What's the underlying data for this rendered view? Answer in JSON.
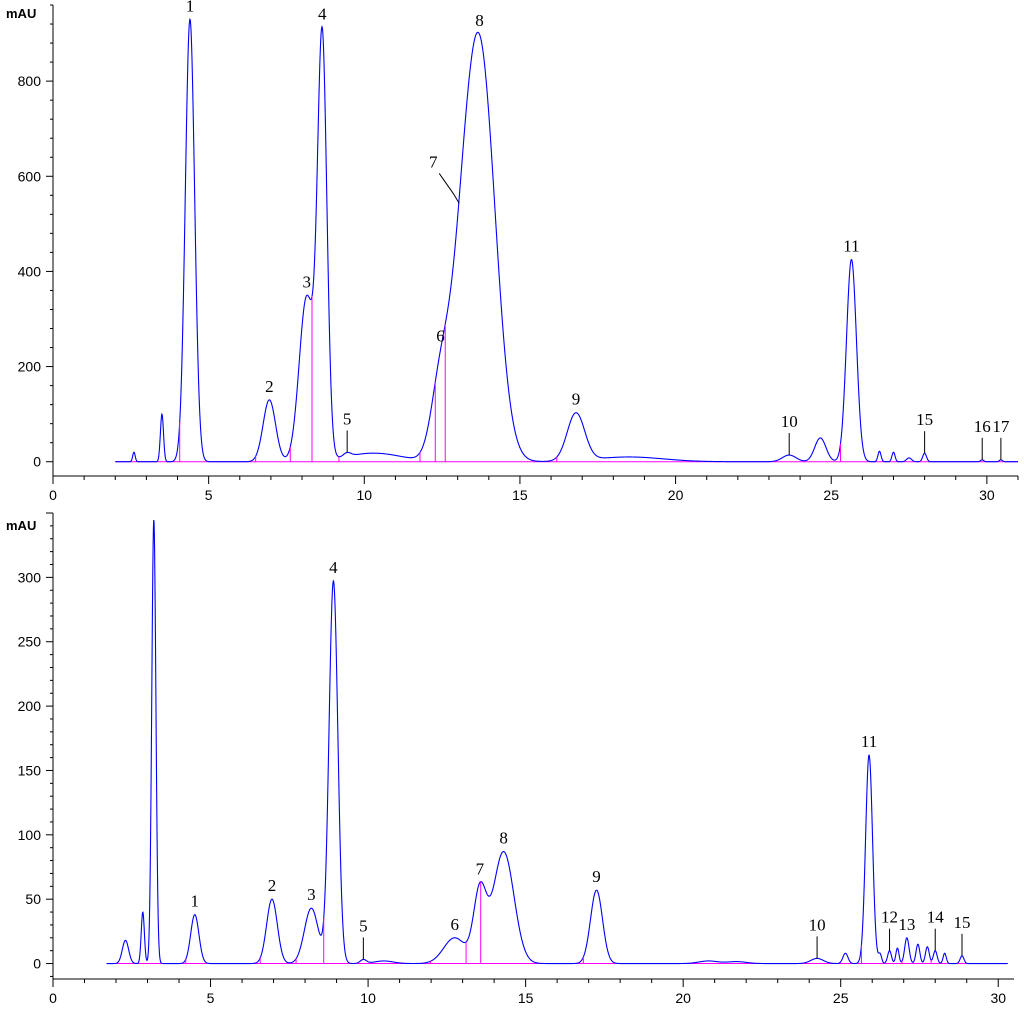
{
  "chart_data": [
    {
      "type": "line",
      "ylabel": "mAU",
      "xlim": [
        0,
        31
      ],
      "ylim": [
        -30,
        960
      ],
      "x_ticks": [
        0,
        5,
        10,
        15,
        20,
        25,
        30
      ],
      "y_ticks": [
        0,
        200,
        400,
        600,
        800
      ],
      "peaks": [
        {
          "label": "1",
          "x": 4.4,
          "height": 930,
          "width": 0.15
        },
        {
          "label": "2",
          "x": 6.95,
          "height": 130,
          "width": 0.2
        },
        {
          "label": "3",
          "x": 8.15,
          "height": 345,
          "width": 0.24
        },
        {
          "label": "4",
          "x": 8.65,
          "height": 870,
          "width": 0.15
        },
        {
          "label": "5",
          "x": 9.45,
          "height": 8,
          "width": 0.12
        },
        {
          "label": "6",
          "x": 12.45,
          "height": 160,
          "width": 0.3
        },
        {
          "label": "7",
          "x": 13.05,
          "height": 160,
          "width": 0.35
        },
        {
          "label": "8",
          "x": 13.7,
          "height": 870,
          "width": 0.5
        },
        {
          "label": "9",
          "x": 16.8,
          "height": 100,
          "width": 0.28
        },
        {
          "label": "10",
          "x": 23.65,
          "height": 14,
          "width": 0.22
        },
        {
          "label": "11",
          "x": 25.65,
          "height": 425,
          "width": 0.16
        },
        {
          "label": "15",
          "x": 28.0,
          "height": 18,
          "width": 0.06
        },
        {
          "label": "16",
          "x": 29.85,
          "height": 4,
          "width": 0.05
        },
        {
          "label": "17",
          "x": 30.45,
          "height": 4,
          "width": 0.05
        }
      ],
      "minor_peaks": [
        {
          "x": 2.6,
          "height": 20,
          "width": 0.04
        },
        {
          "x": 3.5,
          "height": 100,
          "width": 0.05
        },
        {
          "x": 24.65,
          "height": 50,
          "width": 0.18
        },
        {
          "x": 26.55,
          "height": 22,
          "width": 0.05
        },
        {
          "x": 27.0,
          "height": 20,
          "width": 0.05
        },
        {
          "x": 27.5,
          "height": 8,
          "width": 0.08
        }
      ],
      "humps": [
        {
          "x": 10.3,
          "height": 18,
          "width": 0.9
        },
        {
          "x": 18.5,
          "height": 10,
          "width": 1.1
        }
      ],
      "start": 2.0,
      "end": 31.0
    },
    {
      "type": "line",
      "ylabel": "mAU",
      "xlim": [
        0,
        30.5
      ],
      "ylim": [
        -12,
        350
      ],
      "x_ticks": [
        0,
        5,
        10,
        15,
        20,
        25,
        30
      ],
      "y_ticks": [
        0,
        50,
        100,
        150,
        200,
        250,
        300
      ],
      "peaks": [
        {
          "label": "1",
          "x": 4.5,
          "height": 38,
          "width": 0.13
        },
        {
          "label": "2",
          "x": 6.95,
          "height": 50,
          "width": 0.17
        },
        {
          "label": "3",
          "x": 8.2,
          "height": 43,
          "width": 0.22
        },
        {
          "label": "4",
          "x": 8.9,
          "height": 297,
          "width": 0.14
        },
        {
          "label": "5",
          "x": 9.85,
          "height": 3,
          "width": 0.1
        },
        {
          "label": "6",
          "x": 12.75,
          "height": 20,
          "width": 0.35
        },
        {
          "label": "7",
          "x": 13.55,
          "height": 55,
          "width": 0.2
        },
        {
          "label": "8",
          "x": 14.3,
          "height": 87,
          "width": 0.33
        },
        {
          "label": "9",
          "x": 17.25,
          "height": 57,
          "width": 0.19
        },
        {
          "label": "10",
          "x": 24.25,
          "height": 4,
          "width": 0.2
        },
        {
          "label": "11",
          "x": 25.9,
          "height": 162,
          "width": 0.11
        },
        {
          "label": "12",
          "x": 26.55,
          "height": 10,
          "width": 0.06
        },
        {
          "label": "13",
          "x": 27.1,
          "height": 20,
          "width": 0.07
        },
        {
          "label": "14",
          "x": 28.0,
          "height": 10,
          "width": 0.06
        },
        {
          "label": "15",
          "x": 28.85,
          "height": 6,
          "width": 0.06
        }
      ],
      "minor_peaks": [
        {
          "x": 2.3,
          "height": 18,
          "width": 0.1
        },
        {
          "x": 2.85,
          "height": 40,
          "width": 0.05
        },
        {
          "x": 3.2,
          "height": 345,
          "width": 0.065
        },
        {
          "x": 25.15,
          "height": 8,
          "width": 0.08
        },
        {
          "x": 26.25,
          "height": 7,
          "width": 0.05
        },
        {
          "x": 26.8,
          "height": 12,
          "width": 0.05
        },
        {
          "x": 27.45,
          "height": 15,
          "width": 0.06
        },
        {
          "x": 27.75,
          "height": 13,
          "width": 0.06
        },
        {
          "x": 28.3,
          "height": 8,
          "width": 0.05
        }
      ],
      "humps": [
        {
          "x": 10.5,
          "height": 2,
          "width": 0.3
        },
        {
          "x": 20.8,
          "height": 2,
          "width": 0.3
        },
        {
          "x": 21.7,
          "height": 1.5,
          "width": 0.3
        }
      ],
      "start": 1.7,
      "end": 30.3
    }
  ]
}
